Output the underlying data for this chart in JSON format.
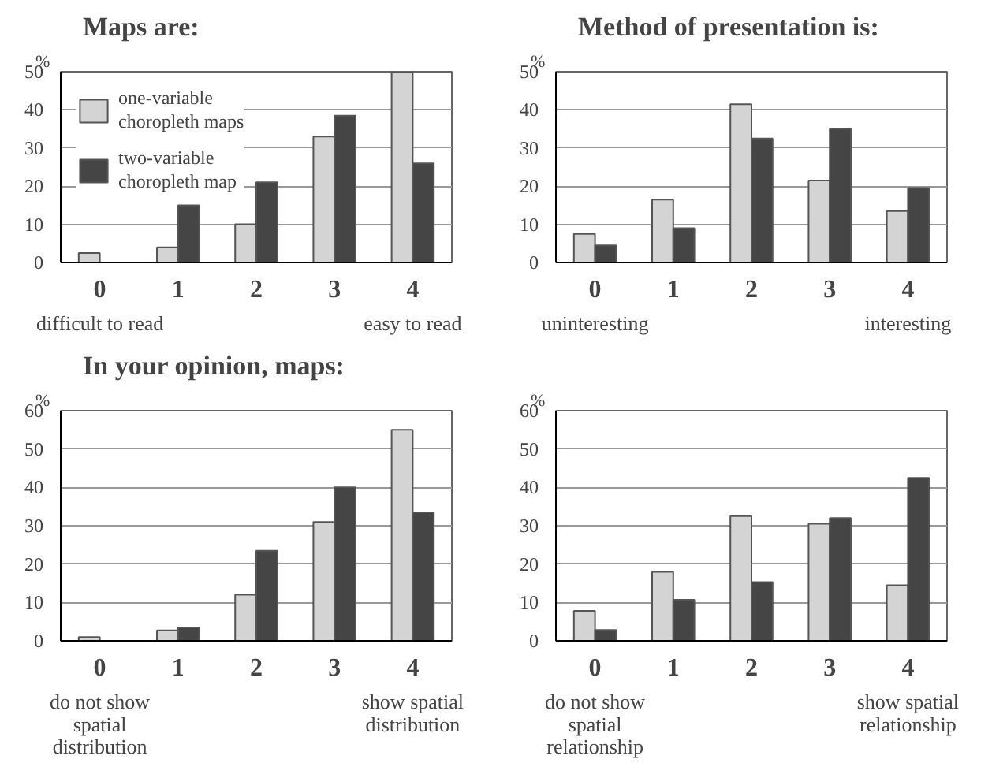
{
  "chart_data": [
    {
      "type": "bar",
      "title": "Maps are:",
      "ylabel": "%",
      "categories": [
        "0",
        "1",
        "2",
        "3",
        "4"
      ],
      "ylim": [
        0,
        50
      ],
      "yticks": [
        0,
        10,
        20,
        30,
        40,
        50
      ],
      "grid": "y",
      "legend": "top left",
      "annotations": [
        "difficult to read",
        "easy to read"
      ],
      "series": [
        {
          "name": "one-variable\nchoropleth maps",
          "color": "#d4d4d4",
          "values": [
            2.5,
            4,
            10,
            33,
            50
          ]
        },
        {
          "name": "two-variable\nchoropleth map",
          "color": "#454545",
          "values": [
            0,
            15,
            21,
            38.5,
            26
          ]
        }
      ]
    },
    {
      "type": "bar",
      "title": "Method of presentation is:",
      "ylabel": "%",
      "categories": [
        "0",
        "1",
        "2",
        "3",
        "4"
      ],
      "ylim": [
        0,
        50
      ],
      "yticks": [
        0,
        10,
        20,
        30,
        40,
        50
      ],
      "grid": "y",
      "annotations": [
        "uninteresting",
        "interesting"
      ],
      "series": [
        {
          "color": "#d4d4d4",
          "values": [
            7.5,
            16.5,
            41.5,
            21.5,
            13.5
          ]
        },
        {
          "color": "#454545",
          "values": [
            4.5,
            9,
            32.5,
            35,
            19.5
          ]
        }
      ]
    },
    {
      "type": "bar",
      "title": "In your opinion, maps:",
      "ylabel": "%",
      "categories": [
        "0",
        "1",
        "2",
        "3",
        "4"
      ],
      "ylim": [
        0,
        60
      ],
      "yticks": [
        0,
        10,
        20,
        30,
        40,
        50,
        60
      ],
      "grid": "y",
      "annotations": [
        "do not show\nspatial\ndistribution",
        "show spatial\ndistribution"
      ],
      "series": [
        {
          "color": "#d4d4d4",
          "values": [
            1,
            2.7,
            12,
            31,
            55
          ]
        },
        {
          "color": "#454545",
          "values": [
            0,
            3.5,
            23.5,
            40,
            33.5
          ]
        }
      ]
    },
    {
      "type": "bar",
      "ylabel": "%",
      "categories": [
        "0",
        "1",
        "2",
        "3",
        "4"
      ],
      "ylim": [
        0,
        60
      ],
      "yticks": [
        0,
        10,
        20,
        30,
        40,
        50,
        60
      ],
      "grid": "y",
      "annotations": [
        "do not show\nspatial\nrelationship",
        "show spatial\nrelationship"
      ],
      "series": [
        {
          "color": "#d4d4d4",
          "values": [
            7.8,
            18,
            32.5,
            30.5,
            14.5
          ]
        },
        {
          "color": "#454545",
          "values": [
            2.8,
            10.7,
            15.3,
            32,
            42.5
          ]
        }
      ]
    }
  ]
}
